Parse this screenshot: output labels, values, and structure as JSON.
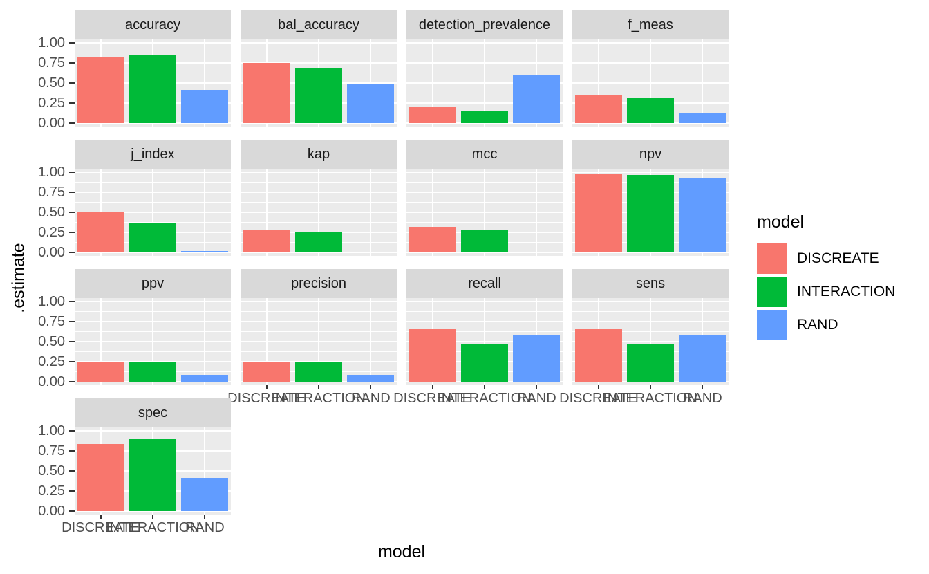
{
  "chart_data": {
    "type": "bar",
    "title": "",
    "xlabel": "model",
    "ylabel": ".estimate",
    "categories": [
      "DISCREATE",
      "INTERACTION",
      "RAND"
    ],
    "series_colors": {
      "DISCREATE": "#F8766D",
      "INTERACTION": "#00BA38",
      "RAND": "#619CFF"
    },
    "ylim": [
      0,
      1
    ],
    "grid": true,
    "y_ticks": [
      {
        "value": 1.0,
        "label": "1.00"
      },
      {
        "value": 0.75,
        "label": "0.75"
      },
      {
        "value": 0.5,
        "label": "0.50"
      },
      {
        "value": 0.25,
        "label": "0.25"
      },
      {
        "value": 0.0,
        "label": "0.00"
      }
    ],
    "legend": {
      "title": "model",
      "position": "right",
      "entries": [
        {
          "label": "DISCREATE",
          "color": "#F8766D"
        },
        {
          "label": "INTERACTION",
          "color": "#00BA38"
        },
        {
          "label": "RAND",
          "color": "#619CFF"
        }
      ]
    },
    "facets": [
      {
        "label": "accuracy",
        "values": [
          0.82,
          0.86,
          0.41
        ]
      },
      {
        "label": "bal_accuracy",
        "values": [
          0.75,
          0.68,
          0.49
        ]
      },
      {
        "label": "detection_prevalence",
        "values": [
          0.2,
          0.14,
          0.6
        ]
      },
      {
        "label": "f_meas",
        "values": [
          0.35,
          0.32,
          0.13
        ]
      },
      {
        "label": "j_index",
        "values": [
          0.5,
          0.36,
          0.01
        ]
      },
      {
        "label": "kap",
        "values": [
          0.28,
          0.25,
          0.0
        ]
      },
      {
        "label": "mcc",
        "values": [
          0.32,
          0.28,
          0.0
        ]
      },
      {
        "label": "npv",
        "values": [
          0.98,
          0.97,
          0.93
        ]
      },
      {
        "label": "ppv",
        "values": [
          0.25,
          0.25,
          0.08
        ]
      },
      {
        "label": "precision",
        "values": [
          0.25,
          0.25,
          0.08
        ]
      },
      {
        "label": "recall",
        "values": [
          0.66,
          0.47,
          0.59
        ]
      },
      {
        "label": "sens",
        "values": [
          0.66,
          0.47,
          0.59
        ]
      },
      {
        "label": "spec",
        "values": [
          0.84,
          0.9,
          0.41
        ]
      }
    ]
  }
}
